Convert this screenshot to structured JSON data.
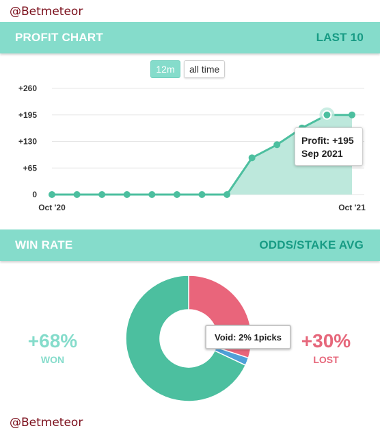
{
  "watermark": "@Betmeteor",
  "profit_header": {
    "title": "PROFIT CHART",
    "right": "LAST 10"
  },
  "range_buttons": {
    "active": "12m",
    "inactive": "all time"
  },
  "tooltip": {
    "line1": "Profit: +195",
    "line2": "Sep 2021"
  },
  "winrate_header": {
    "title": "WIN RATE",
    "right": "ODDS/STAKE AVG"
  },
  "won": {
    "pct": "+68%",
    "label": "WON"
  },
  "lost": {
    "pct": "+30%",
    "label": "LOST"
  },
  "void_tip": "Void: 2% 1picks",
  "colors": {
    "accent": "#85dccb",
    "accent_dark": "#179b84",
    "won": "#4cbf9f",
    "lost": "#e9657b",
    "void": "#4fa0d8"
  },
  "chart_data": [
    {
      "type": "area",
      "y_ticks": [
        "+260",
        "+195",
        "+130",
        "+65",
        "0"
      ],
      "x_tick_labels": [
        "Oct '20",
        "Oct '21"
      ],
      "ylim": [
        0,
        260
      ],
      "series": [
        {
          "values": [
            0,
            0,
            0,
            0,
            0,
            0,
            0,
            0,
            90,
            122,
            163,
            195,
            195
          ]
        }
      ],
      "highlight_index": 11,
      "grid": true
    },
    {
      "type": "pie",
      "slices": [
        {
          "label": "Lost",
          "value": 30
        },
        {
          "label": "Void",
          "value": 2
        },
        {
          "label": "Won",
          "value": 68
        }
      ]
    }
  ]
}
